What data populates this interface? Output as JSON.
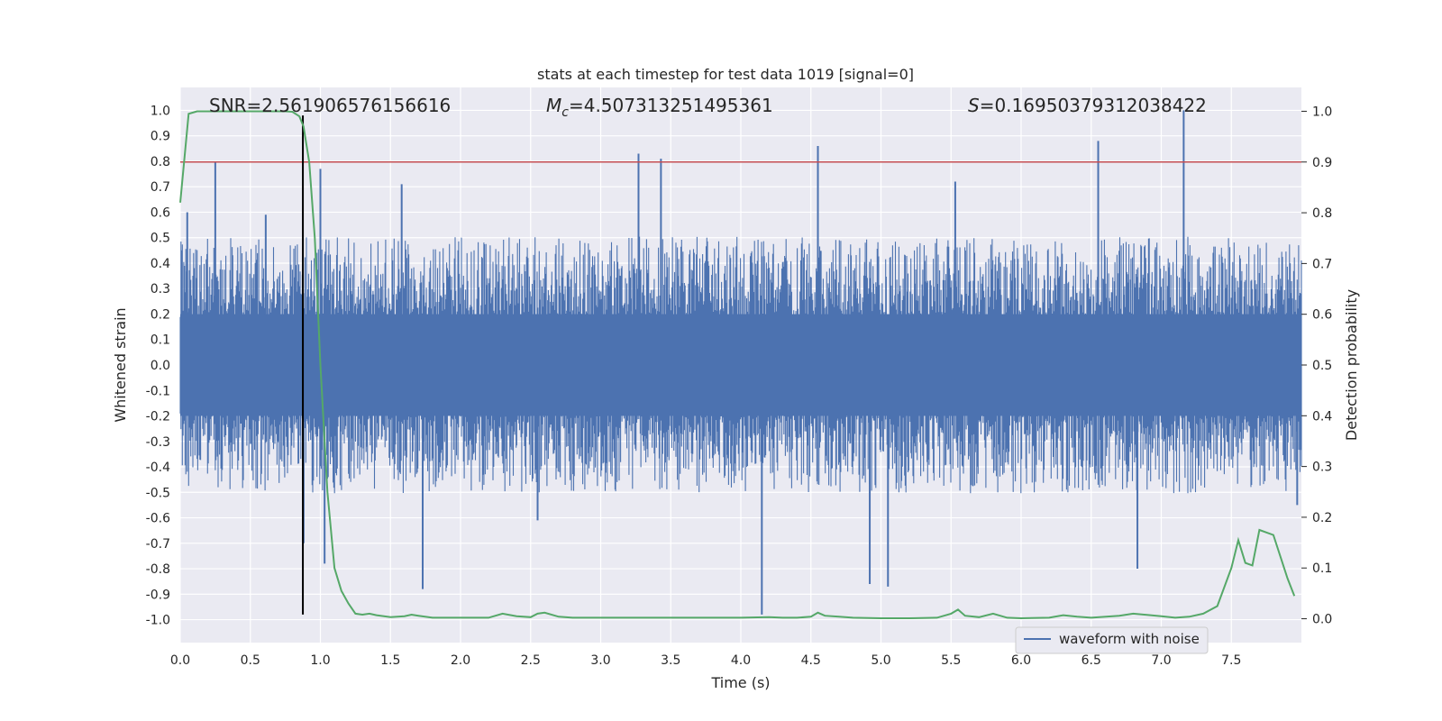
{
  "chart_data": {
    "type": "line",
    "title": "stats at each timestep for test data 1019 [signal=0]",
    "xlabel": "Time (s)",
    "ylabel": "Whitened strain",
    "y2label": "Detection probability",
    "xlim": [
      0.0,
      8.0
    ],
    "ylim": [
      -1.09,
      1.09
    ],
    "y2lim": [
      -0.047,
      1.047
    ],
    "x_ticks": [
      "0.0",
      "0.5",
      "1.0",
      "1.5",
      "2.0",
      "2.5",
      "3.0",
      "3.5",
      "4.0",
      "4.5",
      "5.0",
      "5.5",
      "6.0",
      "6.5",
      "7.0",
      "7.5"
    ],
    "y_ticks": [
      "-1.0",
      "-0.9",
      "-0.8",
      "-0.7",
      "-0.6",
      "-0.5",
      "-0.4",
      "-0.3",
      "-0.2",
      "-0.1",
      "0.0",
      "0.1",
      "0.2",
      "0.3",
      "0.4",
      "0.5",
      "0.6",
      "0.7",
      "0.8",
      "0.9",
      "1.0"
    ],
    "y2_ticks": [
      "0.0",
      "0.1",
      "0.2",
      "0.3",
      "0.4",
      "0.5",
      "0.6",
      "0.7",
      "0.8",
      "0.9",
      "1.0"
    ],
    "annotations": {
      "snr": "SNR=2.561906576156616",
      "mc_symbol": "M",
      "mc_sub": "c",
      "mc_value": "=4.507313251495361",
      "s_symbol": "S",
      "s_value": "=0.16950379312038422"
    },
    "legend": {
      "label": "waveform with noise",
      "placement": "lower-right"
    },
    "threshold_line": {
      "y2": 0.9,
      "color": "#c44e52"
    },
    "marker_line": {
      "x": 0.875,
      "y_range": [
        -0.98,
        0.98
      ],
      "color": "#000000"
    },
    "series": [
      {
        "name": "waveform with noise",
        "color": "#4c72b0",
        "axis": "left",
        "noise_envelope": {
          "x_range": [
            0.0,
            8.0
          ],
          "typical_upper": 0.42,
          "typical_lower": -0.42,
          "core_fill": 0.2
        },
        "peaks": [
          {
            "x": 0.05,
            "y": 0.6
          },
          {
            "x": 0.25,
            "y": 0.8
          },
          {
            "x": 0.61,
            "y": 0.59
          },
          {
            "x": 0.88,
            "y": -0.7
          },
          {
            "x": 1.0,
            "y": 0.77
          },
          {
            "x": 1.03,
            "y": -0.78
          },
          {
            "x": 1.58,
            "y": 0.71
          },
          {
            "x": 1.73,
            "y": -0.88
          },
          {
            "x": 2.55,
            "y": -0.61
          },
          {
            "x": 3.27,
            "y": 0.83
          },
          {
            "x": 3.43,
            "y": 0.81
          },
          {
            "x": 4.15,
            "y": -0.98
          },
          {
            "x": 4.55,
            "y": 0.86
          },
          {
            "x": 4.92,
            "y": -0.86
          },
          {
            "x": 5.05,
            "y": -0.87
          },
          {
            "x": 5.53,
            "y": 0.72
          },
          {
            "x": 6.55,
            "y": 0.88
          },
          {
            "x": 6.83,
            "y": -0.8
          },
          {
            "x": 7.16,
            "y": 1.0
          },
          {
            "x": 7.97,
            "y": -0.55
          }
        ]
      },
      {
        "name": "",
        "color": "#55a868",
        "axis": "right",
        "x": [
          0.0,
          0.06,
          0.12,
          0.2,
          0.3,
          0.4,
          0.5,
          0.6,
          0.7,
          0.75,
          0.8,
          0.85,
          0.88,
          0.92,
          0.96,
          1.0,
          1.05,
          1.1,
          1.15,
          1.2,
          1.25,
          1.3,
          1.35,
          1.4,
          1.5,
          1.6,
          1.65,
          1.7,
          1.8,
          2.0,
          2.2,
          2.3,
          2.4,
          2.5,
          2.55,
          2.6,
          2.7,
          2.8,
          3.0,
          3.5,
          4.0,
          4.2,
          4.3,
          4.4,
          4.5,
          4.55,
          4.6,
          4.7,
          4.8,
          5.0,
          5.2,
          5.4,
          5.5,
          5.55,
          5.6,
          5.7,
          5.8,
          5.9,
          6.0,
          6.2,
          6.3,
          6.4,
          6.5,
          6.7,
          6.8,
          7.0,
          7.1,
          7.2,
          7.3,
          7.4,
          7.5,
          7.55,
          7.6,
          7.65,
          7.7,
          7.8,
          7.9,
          7.95
        ],
        "y": [
          0.82,
          0.995,
          1.0,
          1.0,
          1.0,
          1.0,
          1.0,
          1.0,
          1.0,
          1.0,
          0.999,
          0.99,
          0.97,
          0.9,
          0.75,
          0.5,
          0.25,
          0.1,
          0.055,
          0.03,
          0.01,
          0.008,
          0.01,
          0.007,
          0.003,
          0.005,
          0.008,
          0.006,
          0.002,
          0.002,
          0.002,
          0.01,
          0.005,
          0.003,
          0.01,
          0.012,
          0.004,
          0.002,
          0.002,
          0.002,
          0.002,
          0.003,
          0.002,
          0.002,
          0.004,
          0.012,
          0.006,
          0.004,
          0.002,
          0.001,
          0.001,
          0.002,
          0.01,
          0.018,
          0.006,
          0.003,
          0.01,
          0.002,
          0.001,
          0.002,
          0.007,
          0.004,
          0.002,
          0.006,
          0.01,
          0.005,
          0.002,
          0.004,
          0.01,
          0.025,
          0.1,
          0.155,
          0.11,
          0.105,
          0.175,
          0.165,
          0.08,
          0.045
        ]
      }
    ]
  }
}
